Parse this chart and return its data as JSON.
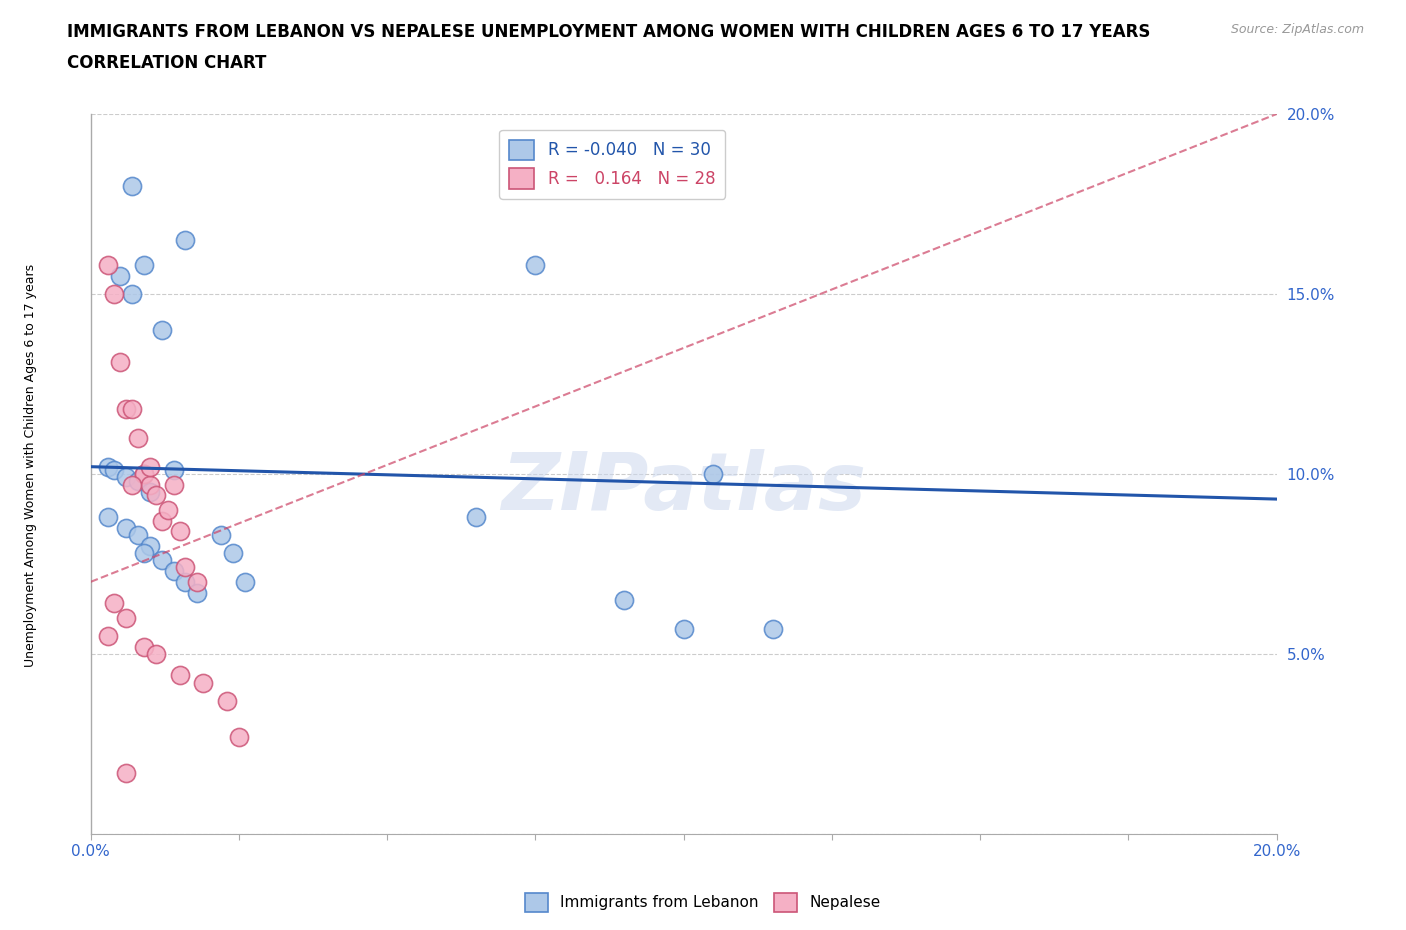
{
  "title_line1": "IMMIGRANTS FROM LEBANON VS NEPALESE UNEMPLOYMENT AMONG WOMEN WITH CHILDREN AGES 6 TO 17 YEARS",
  "title_line2": "CORRELATION CHART",
  "source_text": "Source: ZipAtlas.com",
  "ylabel": "Unemployment Among Women with Children Ages 6 to 17 years",
  "xlim": [
    0.0,
    0.2
  ],
  "ylim": [
    0.0,
    0.2
  ],
  "xticks": [
    0.0,
    0.025,
    0.05,
    0.075,
    0.1,
    0.125,
    0.15,
    0.175,
    0.2
  ],
  "yticks": [
    0.0,
    0.05,
    0.1,
    0.15,
    0.2
  ],
  "blue_scatter_x": [
    0.007,
    0.016,
    0.009,
    0.012,
    0.005,
    0.007,
    0.003,
    0.004,
    0.006,
    0.008,
    0.01,
    0.014,
    0.003,
    0.006,
    0.008,
    0.01,
    0.009,
    0.012,
    0.014,
    0.016,
    0.018,
    0.022,
    0.024,
    0.026,
    0.065,
    0.075,
    0.09,
    0.1,
    0.115,
    0.105
  ],
  "blue_scatter_y": [
    0.18,
    0.165,
    0.158,
    0.14,
    0.155,
    0.15,
    0.102,
    0.101,
    0.099,
    0.098,
    0.095,
    0.101,
    0.088,
    0.085,
    0.083,
    0.08,
    0.078,
    0.076,
    0.073,
    0.07,
    0.067,
    0.083,
    0.078,
    0.07,
    0.088,
    0.158,
    0.065,
    0.057,
    0.057,
    0.1
  ],
  "pink_scatter_x": [
    0.003,
    0.004,
    0.005,
    0.006,
    0.007,
    0.008,
    0.009,
    0.009,
    0.01,
    0.011,
    0.012,
    0.013,
    0.014,
    0.015,
    0.016,
    0.018,
    0.004,
    0.006,
    0.003,
    0.009,
    0.011,
    0.015,
    0.019,
    0.023,
    0.025,
    0.006,
    0.007,
    0.01
  ],
  "pink_scatter_y": [
    0.158,
    0.15,
    0.131,
    0.118,
    0.118,
    0.11,
    0.1,
    0.1,
    0.097,
    0.094,
    0.087,
    0.09,
    0.097,
    0.084,
    0.074,
    0.07,
    0.064,
    0.06,
    0.055,
    0.052,
    0.05,
    0.044,
    0.042,
    0.037,
    0.027,
    0.017,
    0.097,
    0.102
  ],
  "blue_R": "-0.040",
  "blue_N": "30",
  "pink_R": "0.164",
  "pink_N": "28",
  "blue_color": "#adc8e8",
  "pink_color": "#f5b0c5",
  "blue_line_color": "#2255aa",
  "pink_line_color": "#cc4466",
  "blue_scatter_edge": "#5588cc",
  "pink_scatter_edge": "#cc5577",
  "watermark": "ZIPatlas",
  "grid_color": "#cccccc",
  "title_fontsize": 12,
  "subtitle_fontsize": 12,
  "axis_label_fontsize": 9,
  "tick_fontsize": 11
}
